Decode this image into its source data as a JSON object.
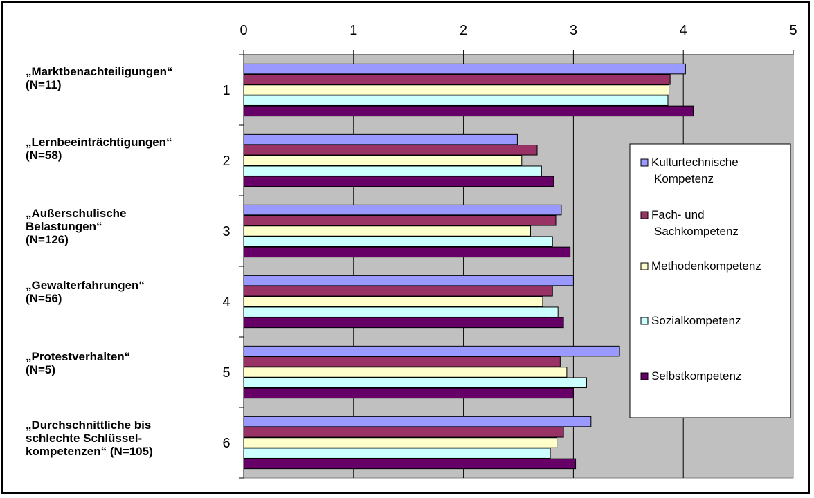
{
  "groups": [
    {
      "lines": [
        "„Marktbenachteiligungen“",
        "(N=11)"
      ]
    },
    {
      "lines": [
        "„Lernbeeinträchtigungen“",
        "(N=58)"
      ]
    },
    {
      "lines": [
        "„Außerschulische",
        "Belastungen“",
        "(N=126)"
      ]
    },
    {
      "lines": [
        "„Gewalterfahrungen“",
        "(N=56)"
      ]
    },
    {
      "lines": [
        "„Protestverhalten“",
        "(N=5)"
      ]
    },
    {
      "lines": [
        "„Durchschnittliche bis",
        "schlechte Schlüssel-",
        "kompetenzen“ (N=105)"
      ]
    }
  ],
  "chart_data": {
    "type": "bar",
    "orientation": "horizontal",
    "categories": [
      "1",
      "2",
      "3",
      "4",
      "5",
      "6"
    ],
    "xlim": [
      0,
      5
    ],
    "xticks": [
      "0",
      "1",
      "2",
      "3",
      "4",
      "5"
    ],
    "x_axis_position": "top",
    "grid": true,
    "legend_position": "right",
    "plot_background": "#c0c0c0",
    "series": [
      {
        "name": "Kulturtechnische Kompetenz",
        "color": "#9999ff",
        "values": [
          4.02,
          2.49,
          2.89,
          3.0,
          3.42,
          3.16
        ]
      },
      {
        "name": "Fach- und Sachkompetenz",
        "color": "#993366",
        "values": [
          3.88,
          2.67,
          2.84,
          2.81,
          2.88,
          2.91
        ]
      },
      {
        "name": "Methodenkompetenz",
        "color": "#ffffcc",
        "values": [
          3.87,
          2.53,
          2.61,
          2.72,
          2.94,
          2.85
        ]
      },
      {
        "name": "Sozialkompetenz",
        "color": "#ccffff",
        "values": [
          3.86,
          2.71,
          2.81,
          2.86,
          3.12,
          2.79
        ]
      },
      {
        "name": "Selbstkompetenz",
        "color": "#660066",
        "values": [
          4.09,
          2.82,
          2.97,
          2.91,
          3.0,
          3.02
        ]
      }
    ]
  }
}
